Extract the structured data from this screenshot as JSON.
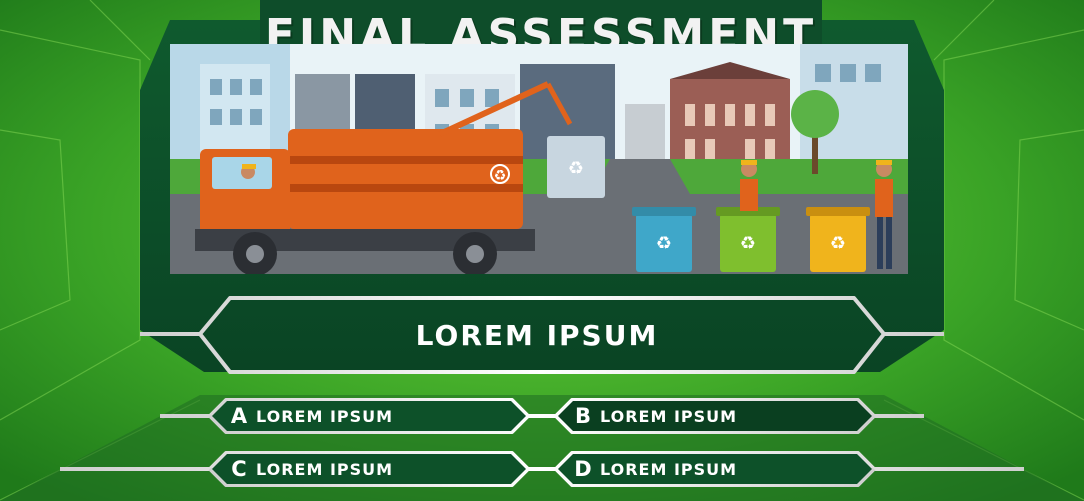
{
  "title": "FINAL ASSESSMENT",
  "question": {
    "text": "LOREM IPSUM"
  },
  "answers": [
    {
      "letter": "A",
      "text": "LOREM IPSUM"
    },
    {
      "letter": "B",
      "text": "LOREM IPSUM"
    },
    {
      "letter": "C",
      "text": "LOREM IPSUM"
    },
    {
      "letter": "D",
      "text": "LOREM IPSUM"
    }
  ],
  "colors": {
    "background_green": "#3aa326",
    "panel_dark_green": "#0e4d2a",
    "frame_silver": "#d9d9d9",
    "truck_orange": "#e0631c",
    "bin_blue": "#3fa7c9",
    "bin_green": "#7fbf2e",
    "bin_yellow": "#f0b41c"
  },
  "scene": {
    "subject": "garbage-truck-recycling-illustration",
    "icons": [
      "recycle-icon"
    ]
  }
}
